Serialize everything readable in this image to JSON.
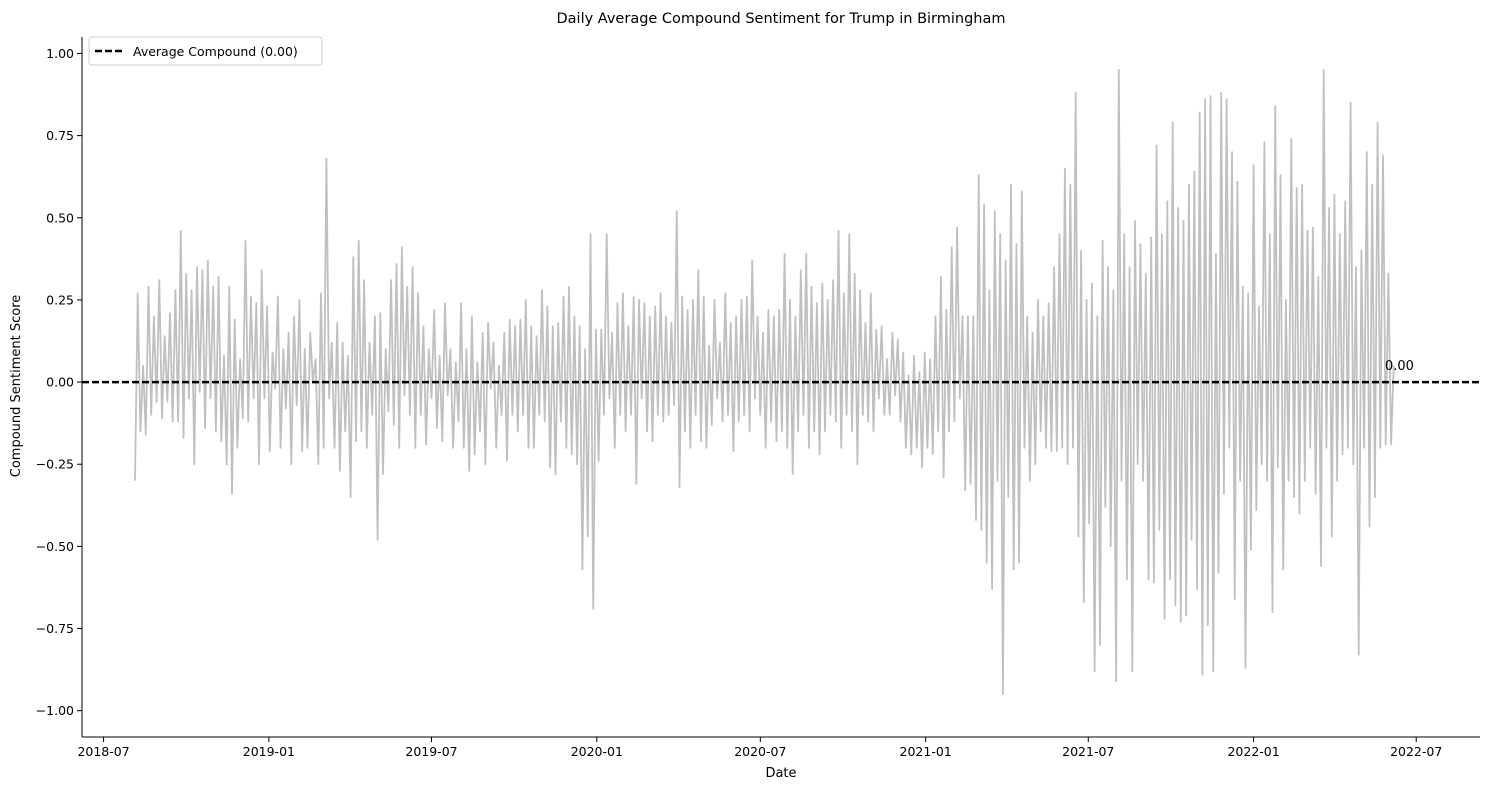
{
  "chart_data": {
    "type": "line",
    "title": "Daily Average Compound Sentiment for Trump in Birmingham",
    "xlabel": "Date",
    "ylabel": "Compound Sentiment Score",
    "xlim": [
      "2018-06-07",
      "2022-09-10"
    ],
    "ylim": [
      -1.08,
      1.05
    ],
    "x_ticks": [
      "2018-07",
      "2019-01",
      "2019-07",
      "2020-01",
      "2020-07",
      "2021-01",
      "2021-07",
      "2022-01",
      "2022-07"
    ],
    "y_ticks": [
      1.0,
      0.75,
      0.5,
      0.25,
      0.0,
      -0.25,
      -0.5,
      -0.75,
      -1.0
    ],
    "y_tick_labels": [
      "1.00",
      "0.75",
      "0.50",
      "0.25",
      "0.00",
      "−0.25",
      "−0.50",
      "−0.75",
      "−1.00"
    ],
    "legend": {
      "position": "top-left",
      "entries": [
        "Average Compound (0.00)"
      ]
    },
    "reference_line": {
      "y": 0.0,
      "label": "0.00",
      "style": "dashed",
      "color": "#000000"
    },
    "series": [
      {
        "color": "#c0c0c0",
        "sampling": "approx. one value per 3 days (daily series too dense to transcribe individually)",
        "x_start": "2018-08-05",
        "x_end": "2022-06-30",
        "x_step_days": 3,
        "values": [
          -0.3,
          0.27,
          -0.15,
          0.05,
          -0.16,
          0.29,
          -0.1,
          0.2,
          -0.06,
          0.31,
          -0.11,
          0.14,
          -0.06,
          0.21,
          -0.12,
          0.28,
          -0.12,
          0.46,
          -0.17,
          0.33,
          -0.05,
          0.28,
          -0.25,
          0.35,
          -0.03,
          0.34,
          -0.14,
          0.37,
          -0.05,
          0.29,
          -0.15,
          0.32,
          -0.18,
          0.08,
          -0.25,
          0.29,
          -0.34,
          0.19,
          -0.2,
          0.07,
          -0.11,
          0.43,
          -0.12,
          0.26,
          -0.05,
          0.24,
          -0.25,
          0.34,
          -0.05,
          0.23,
          -0.21,
          0.09,
          -0.02,
          0.26,
          -0.2,
          0.1,
          -0.08,
          0.15,
          -0.25,
          0.2,
          -0.07,
          0.25,
          -0.21,
          0.1,
          -0.2,
          0.15,
          0.0,
          0.07,
          -0.25,
          0.27,
          -0.2,
          0.68,
          -0.05,
          0.12,
          -0.2,
          0.18,
          -0.27,
          0.12,
          -0.15,
          0.08,
          -0.35,
          0.38,
          -0.18,
          0.43,
          -0.15,
          0.31,
          -0.2,
          0.12,
          -0.1,
          0.2,
          -0.48,
          0.21,
          -0.28,
          0.1,
          -0.09,
          0.31,
          -0.13,
          0.36,
          -0.2,
          0.41,
          -0.04,
          0.29,
          -0.1,
          0.35,
          -0.2,
          0.27,
          -0.1,
          0.17,
          -0.19,
          0.1,
          -0.05,
          0.22,
          -0.14,
          0.08,
          -0.18,
          0.24,
          -0.04,
          0.1,
          -0.2,
          0.06,
          -0.12,
          0.24,
          -0.2,
          0.1,
          -0.27,
          0.2,
          -0.22,
          0.06,
          -0.15,
          0.15,
          -0.25,
          0.18,
          -0.02,
          0.12,
          -0.2,
          0.05,
          -0.1,
          0.15,
          -0.24,
          0.19,
          -0.1,
          0.17,
          -0.15,
          0.19,
          -0.1,
          0.25,
          -0.2,
          0.17,
          -0.2,
          0.14,
          -0.1,
          0.28,
          -0.12,
          0.23,
          -0.26,
          0.17,
          -0.28,
          0.18,
          -0.12,
          0.26,
          -0.2,
          0.29,
          -0.22,
          0.2,
          -0.25,
          0.17,
          -0.57,
          0.1,
          -0.47,
          0.45,
          -0.69,
          0.16,
          -0.24,
          0.16,
          -0.1,
          0.45,
          -0.05,
          0.15,
          -0.2,
          0.24,
          -0.1,
          0.27,
          -0.15,
          0.17,
          -0.1,
          0.26,
          -0.31,
          0.25,
          -0.05,
          0.24,
          -0.15,
          0.2,
          -0.18,
          0.23,
          -0.1,
          0.27,
          -0.12,
          0.2,
          -0.1,
          0.18,
          -0.07,
          0.52,
          -0.32,
          0.26,
          -0.15,
          0.22,
          -0.2,
          0.25,
          -0.1,
          0.34,
          -0.18,
          0.26,
          -0.2,
          0.11,
          -0.13,
          0.25,
          -0.05,
          0.12,
          -0.12,
          0.27,
          -0.1,
          0.18,
          -0.21,
          0.2,
          -0.12,
          0.25,
          -0.1,
          0.26,
          -0.15,
          0.37,
          -0.05,
          0.2,
          -0.1,
          0.15,
          -0.2,
          0.22,
          -0.12,
          0.2,
          -0.18,
          0.22,
          -0.15,
          0.39,
          -0.2,
          0.25,
          -0.28,
          0.2,
          -0.15,
          0.34,
          -0.1,
          0.39,
          -0.2,
          0.29,
          -0.15,
          0.24,
          -0.22,
          0.3,
          -0.15,
          0.25,
          -0.1,
          0.31,
          -0.12,
          0.46,
          -0.2,
          0.27,
          -0.1,
          0.45,
          -0.15,
          0.33,
          -0.25,
          0.28,
          -0.1,
          0.18,
          -0.12,
          0.27,
          -0.15,
          0.16,
          -0.05,
          0.17,
          -0.1,
          0.07,
          -0.1,
          0.15,
          -0.04,
          0.13,
          -0.12,
          0.09,
          -0.2,
          0.02,
          -0.22,
          0.08,
          -0.2,
          0.03,
          -0.26,
          0.09,
          -0.2,
          0.07,
          -0.22,
          0.2,
          -0.15,
          0.32,
          -0.29,
          0.22,
          -0.15,
          0.41,
          -0.12,
          0.47,
          -0.05,
          0.2,
          -0.33,
          0.2,
          -0.31,
          0.2,
          -0.42,
          0.63,
          -0.45,
          0.54,
          -0.55,
          0.28,
          -0.63,
          0.52,
          -0.3,
          0.45,
          -0.95,
          0.37,
          -0.35,
          0.6,
          -0.57,
          0.42,
          -0.55,
          0.58,
          -0.2,
          0.2,
          -0.3,
          0.15,
          -0.25,
          0.25,
          -0.15,
          0.2,
          -0.2,
          0.24,
          -0.21,
          0.35,
          -0.21,
          0.45,
          -0.2,
          0.65,
          -0.25,
          0.6,
          -0.2,
          0.88,
          -0.47,
          0.4,
          -0.67,
          0.25,
          -0.43,
          0.3,
          -0.88,
          0.2,
          -0.8,
          0.43,
          -0.38,
          0.35,
          -0.5,
          0.28,
          -0.91,
          0.95,
          -0.3,
          0.45,
          -0.6,
          0.35,
          -0.88,
          0.49,
          -0.25,
          0.42,
          -0.3,
          0.33,
          -0.6,
          0.44,
          -0.61,
          0.72,
          -0.45,
          0.45,
          -0.72,
          0.55,
          -0.6,
          0.79,
          -0.68,
          0.53,
          -0.73,
          0.49,
          -0.71,
          0.6,
          -0.48,
          0.64,
          -0.63,
          0.82,
          -0.89,
          0.86,
          -0.74,
          0.87,
          -0.88,
          0.39,
          -0.58,
          0.88,
          -0.34,
          0.86,
          -0.2,
          0.7,
          -0.66,
          0.61,
          -0.3,
          0.29,
          -0.87,
          0.27,
          -0.51,
          0.66,
          -0.39,
          0.23,
          -0.25,
          0.73,
          -0.3,
          0.45,
          -0.7,
          0.84,
          -0.26,
          0.63,
          -0.57,
          0.25,
          -0.3,
          0.74,
          -0.35,
          0.59,
          -0.4,
          0.6,
          -0.3,
          0.46,
          -0.2,
          0.47,
          -0.34,
          0.32,
          -0.56,
          0.95,
          -0.2,
          0.53,
          -0.47,
          0.57,
          -0.3,
          0.45,
          -0.22,
          0.55,
          -0.2,
          0.85,
          -0.25,
          0.35,
          -0.83,
          0.4,
          -0.2,
          0.7,
          -0.44,
          0.6,
          -0.35,
          0.79,
          -0.2,
          0.69,
          -0.19,
          0.33,
          -0.19,
          0.05
        ]
      }
    ]
  }
}
